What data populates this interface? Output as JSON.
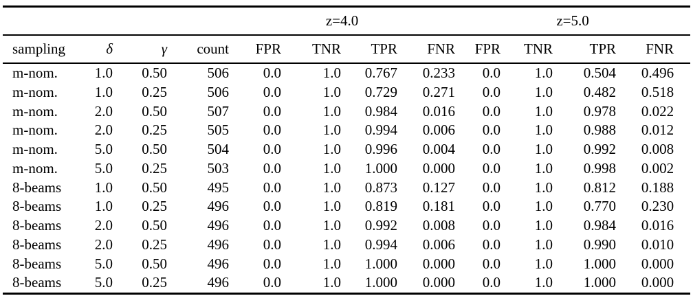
{
  "table": {
    "group_headers": [
      {
        "label": "",
        "span": 4
      },
      {
        "label": "z=4.0",
        "span": 4
      },
      {
        "label": "z=5.0",
        "span": 4
      }
    ],
    "columns": [
      "sampling",
      "δ",
      "γ",
      "count",
      "FPR",
      "TNR",
      "TPR",
      "FNR",
      "FPR",
      "TNR",
      "TPR",
      "FNR"
    ],
    "rows": [
      [
        "m-nom.",
        "1.0",
        "0.50",
        "506",
        "0.0",
        "1.0",
        "0.767",
        "0.233",
        "0.0",
        "1.0",
        "0.504",
        "0.496"
      ],
      [
        "m-nom.",
        "1.0",
        "0.25",
        "506",
        "0.0",
        "1.0",
        "0.729",
        "0.271",
        "0.0",
        "1.0",
        "0.482",
        "0.518"
      ],
      [
        "m-nom.",
        "2.0",
        "0.50",
        "507",
        "0.0",
        "1.0",
        "0.984",
        "0.016",
        "0.0",
        "1.0",
        "0.978",
        "0.022"
      ],
      [
        "m-nom.",
        "2.0",
        "0.25",
        "505",
        "0.0",
        "1.0",
        "0.994",
        "0.006",
        "0.0",
        "1.0",
        "0.988",
        "0.012"
      ],
      [
        "m-nom.",
        "5.0",
        "0.50",
        "504",
        "0.0",
        "1.0",
        "0.996",
        "0.004",
        "0.0",
        "1.0",
        "0.992",
        "0.008"
      ],
      [
        "m-nom.",
        "5.0",
        "0.25",
        "503",
        "0.0",
        "1.0",
        "1.000",
        "0.000",
        "0.0",
        "1.0",
        "0.998",
        "0.002"
      ],
      [
        "8-beams",
        "1.0",
        "0.50",
        "495",
        "0.0",
        "1.0",
        "0.873",
        "0.127",
        "0.0",
        "1.0",
        "0.812",
        "0.188"
      ],
      [
        "8-beams",
        "1.0",
        "0.25",
        "496",
        "0.0",
        "1.0",
        "0.819",
        "0.181",
        "0.0",
        "1.0",
        "0.770",
        "0.230"
      ],
      [
        "8-beams",
        "2.0",
        "0.50",
        "496",
        "0.0",
        "1.0",
        "0.992",
        "0.008",
        "0.0",
        "1.0",
        "0.984",
        "0.016"
      ],
      [
        "8-beams",
        "2.0",
        "0.25",
        "496",
        "0.0",
        "1.0",
        "0.994",
        "0.006",
        "0.0",
        "1.0",
        "0.990",
        "0.010"
      ],
      [
        "8-beams",
        "5.0",
        "0.50",
        "496",
        "0.0",
        "1.0",
        "1.000",
        "0.000",
        "0.0",
        "1.0",
        "1.000",
        "0.000"
      ],
      [
        "8-beams",
        "5.0",
        "0.25",
        "496",
        "0.0",
        "1.0",
        "1.000",
        "0.000",
        "0.0",
        "1.0",
        "1.000",
        "0.000"
      ]
    ]
  }
}
